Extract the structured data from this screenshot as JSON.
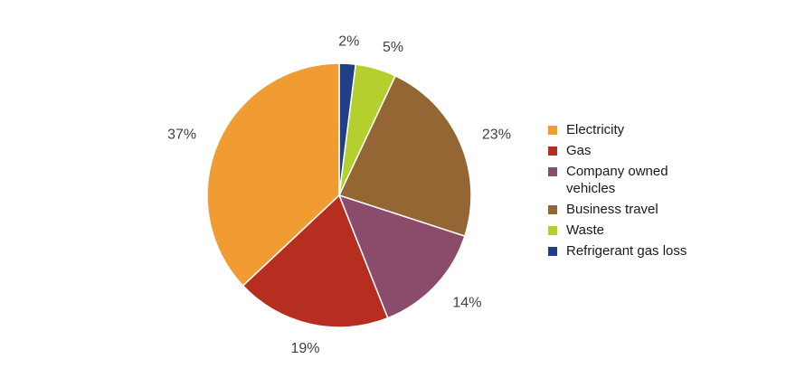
{
  "chart_data": {
    "type": "pie",
    "slices": [
      {
        "label": "Refrigerant gas loss",
        "value": 2,
        "display": "2%",
        "color": "#1f3f86"
      },
      {
        "label": "Waste",
        "value": 5,
        "display": "5%",
        "color": "#b5cf2f"
      },
      {
        "label": "Business travel",
        "value": 23,
        "display": "23%",
        "color": "#936634"
      },
      {
        "label": "Company owned vehicles",
        "value": 14,
        "display": "14%",
        "color": "#8b4b6b"
      },
      {
        "label": "Gas",
        "value": 19,
        "display": "19%",
        "color": "#b52e1f"
      },
      {
        "label": "Electricity",
        "value": 37,
        "display": "37%",
        "color": "#f19b33"
      }
    ],
    "legend_order": [
      "Electricity",
      "Gas",
      "Company owned vehicles",
      "Business travel",
      "Waste",
      "Refrigerant gas loss"
    ],
    "legend_placement": "right"
  }
}
